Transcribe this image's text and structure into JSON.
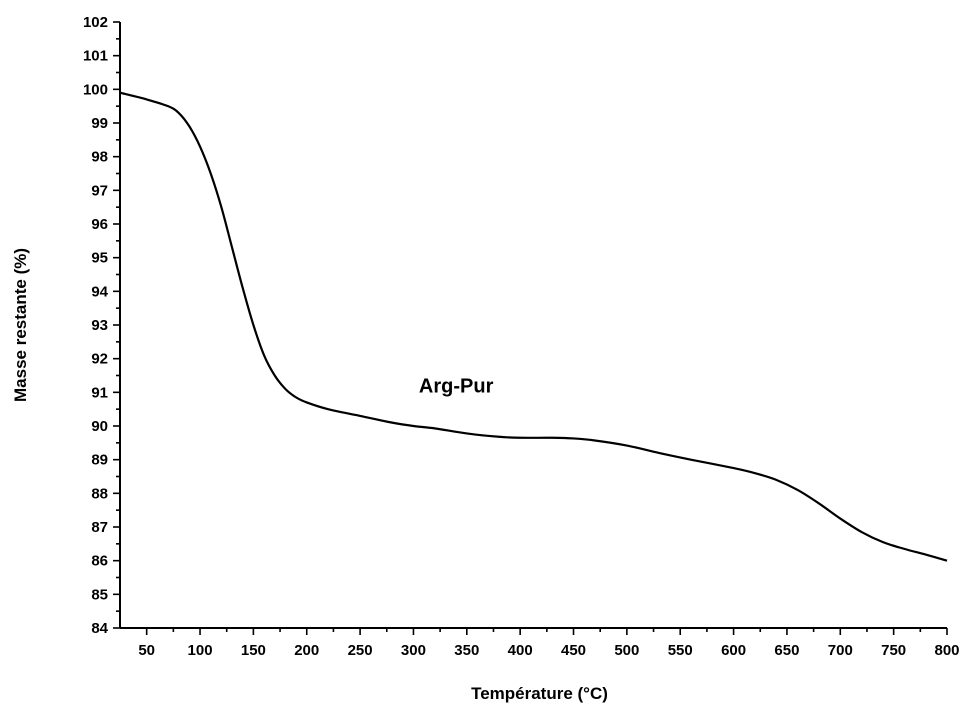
{
  "chart_data": {
    "type": "line",
    "title": "",
    "xlabel": "Température (°C)",
    "ylabel": "Masse restante (%)",
    "xlim": [
      25,
      800
    ],
    "ylim": [
      84,
      102
    ],
    "xticks": [
      50,
      100,
      150,
      200,
      250,
      300,
      350,
      400,
      450,
      500,
      550,
      600,
      650,
      700,
      750,
      800
    ],
    "yticks": [
      84,
      85,
      86,
      87,
      88,
      89,
      90,
      91,
      92,
      93,
      94,
      95,
      96,
      97,
      98,
      99,
      100,
      101,
      102
    ],
    "grid": false,
    "line_color": "#000000",
    "annotation": {
      "text": "Arg-Pur",
      "x": 340,
      "y": 91.0
    },
    "series": [
      {
        "name": "Arg-Pur",
        "x": [
          25,
          50,
          70,
          80,
          90,
          100,
          110,
          120,
          130,
          140,
          150,
          160,
          170,
          180,
          190,
          200,
          220,
          250,
          280,
          300,
          320,
          350,
          380,
          400,
          430,
          450,
          470,
          500,
          530,
          560,
          600,
          620,
          640,
          660,
          680,
          700,
          720,
          740,
          760,
          780,
          800
        ],
        "y": [
          99.9,
          99.7,
          99.5,
          99.3,
          98.9,
          98.3,
          97.5,
          96.5,
          95.3,
          94.1,
          93.0,
          92.1,
          91.5,
          91.1,
          90.85,
          90.7,
          90.5,
          90.3,
          90.1,
          90.0,
          89.93,
          89.78,
          89.68,
          89.65,
          89.65,
          89.63,
          89.57,
          89.42,
          89.2,
          89.0,
          88.75,
          88.6,
          88.4,
          88.1,
          87.7,
          87.25,
          86.85,
          86.55,
          86.35,
          86.18,
          86.0
        ]
      }
    ]
  }
}
